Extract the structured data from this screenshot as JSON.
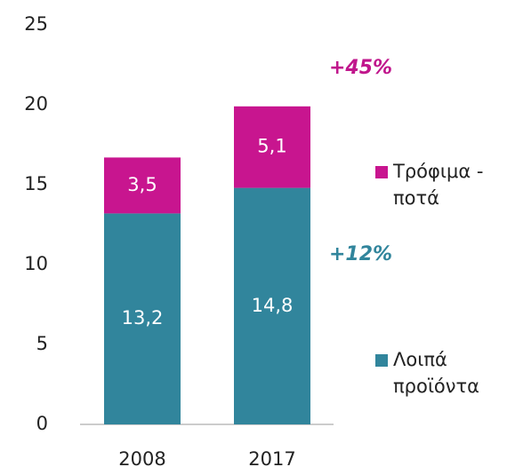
{
  "chart_data": {
    "type": "stacked_bar",
    "categories": [
      "2008",
      "2017"
    ],
    "series": [
      {
        "name": "Λοιπά προϊόντα",
        "color": "#31859c",
        "values": [
          13.2,
          14.8
        ],
        "value_labels": [
          "13,2",
          "14,8"
        ]
      },
      {
        "name": "Τρόφιμα - ποτά",
        "color": "#c8158f",
        "values": [
          3.5,
          5.1
        ],
        "value_labels": [
          "3,5",
          "5,1"
        ]
      }
    ],
    "annotations": [
      {
        "text": "+45%",
        "color": "#c0168c"
      },
      {
        "text": "+12%",
        "color": "#31859c"
      }
    ],
    "ylim": [
      0,
      25
    ],
    "yticks": [
      0,
      5,
      10,
      15,
      20,
      25
    ],
    "grid": false
  }
}
